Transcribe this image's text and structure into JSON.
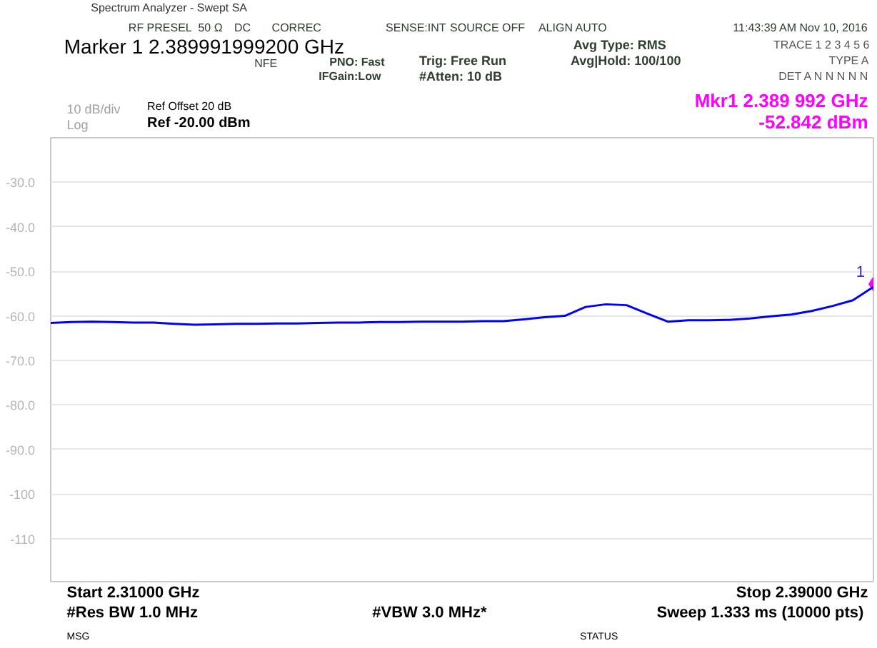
{
  "chart_data": {
    "type": "line",
    "title": "Spectrum Analyzer - Swept SA",
    "categories": [
      null,
      null,
      null,
      null,
      null,
      null,
      null,
      null,
      null,
      null,
      null,
      null,
      null,
      null,
      null,
      null,
      null,
      null,
      null,
      null,
      null,
      null,
      null,
      null,
      null,
      null,
      null,
      null,
      null,
      null,
      null,
      null,
      null,
      null,
      null,
      null,
      null,
      null,
      null,
      null,
      null
    ],
    "ylim": [
      -120,
      -20
    ],
    "yticks": [
      {
        "value": -30,
        "label": "-30.0"
      },
      {
        "value": -40,
        "label": "-40.0"
      },
      {
        "value": -50,
        "label": "-50.0"
      },
      {
        "value": -60,
        "label": "-60.0"
      },
      {
        "value": -70,
        "label": "-70.0"
      },
      {
        "value": -80,
        "label": "-80.0"
      },
      {
        "value": -90,
        "label": "-90.0"
      },
      {
        "value": -100,
        "label": "-100"
      },
      {
        "value": -110,
        "label": "-110"
      }
    ],
    "tick_labels": "y",
    "grid": "y",
    "legend": false,
    "series": [
      {
        "color": "#0000ff",
        "values": [
          -61.6,
          -61.4,
          -61.3,
          -61.4,
          -61.5,
          -61.5,
          -61.8,
          -62.0,
          -61.9,
          -61.8,
          -61.8,
          -61.7,
          -61.7,
          -61.6,
          -61.5,
          -61.5,
          -61.4,
          -61.4,
          -61.3,
          -61.3,
          -61.3,
          -61.2,
          -61.2,
          -60.8,
          -60.3,
          -60.0,
          -58.0,
          -57.4,
          -57.6,
          -59.5,
          -61.3,
          -61.0,
          -61.0,
          -60.9,
          -60.6,
          -60.1,
          -59.7,
          -58.9,
          -57.8,
          -56.5,
          -53.5
        ]
      },
      {
        "type": "scatter",
        "name": "1",
        "color": "#ff00ff",
        "marker": "diamond",
        "values": [
          null,
          null,
          null,
          null,
          null,
          null,
          null,
          null,
          null,
          null,
          null,
          null,
          null,
          null,
          null,
          null,
          null,
          null,
          null,
          null,
          null,
          null,
          null,
          null,
          null,
          null,
          null,
          null,
          null,
          null,
          null,
          null,
          null,
          null,
          null,
          null,
          null,
          null,
          null,
          null,
          -52.842
        ]
      }
    ],
    "annotations": [
      "RF PRESEL",
      "50 Ω",
      "DC",
      "CORREC",
      "SENSE:INT",
      "SOURCE OFF",
      "ALIGN AUTO",
      "11:43:39 AM Nov 10, 2016",
      "Marker 1 2.389991999200 GHz",
      "NFE",
      "PNO: Fast",
      "IFGain:Low",
      "Trig: Free Run",
      "#Atten: 10 dB",
      "Avg Type: RMS",
      "Avg|Hold: 100/100",
      "TRACE 1 2 3 4 5 6",
      "TYPE A",
      "DET A N N N N N",
      "Ref Offset 20 dB",
      "Ref -20.00 dBm",
      "10 dB/div",
      "Log",
      "Mkr1 2.389 992 GHz",
      "-52.842 dBm",
      "Start 2.31000 GHz",
      "Stop 2.39000 GHz",
      "#Res BW 1.0 MHz",
      "#VBW 3.0 MHz*",
      "Sweep  1.333 ms (10000 pts)",
      "MSG",
      "STATUS"
    ]
  }
}
